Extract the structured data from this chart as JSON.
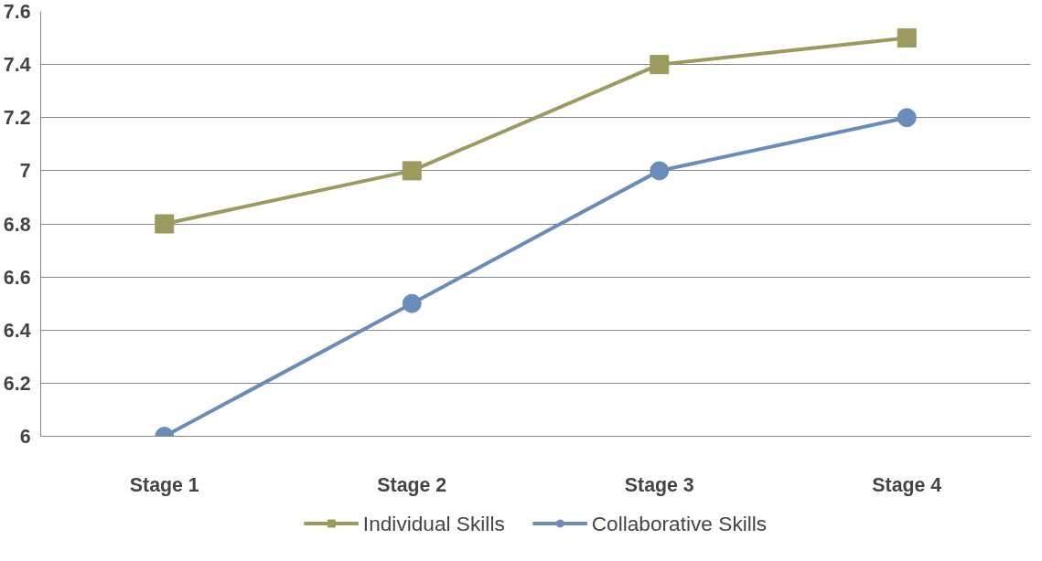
{
  "chart_data": {
    "type": "line",
    "categories": [
      "Stage 1",
      "Stage 2",
      "Stage 3",
      "Stage 4"
    ],
    "series": [
      {
        "name": "Individual Skills",
        "color": "#9b9a5f",
        "marker": "square",
        "values": [
          6.8,
          7.0,
          7.4,
          7.5
        ]
      },
      {
        "name": "Collaborative Skills",
        "color": "#6a8cb9",
        "marker": "circle",
        "values": [
          6.0,
          6.5,
          7.0,
          7.2
        ]
      }
    ],
    "ylim": [
      6,
      7.6
    ],
    "yticks": [
      6,
      6.2,
      6.4,
      6.6,
      6.8,
      7,
      7.2,
      7.4,
      7.6
    ],
    "grid": "y",
    "legend": "bottom",
    "line_style": "solid"
  }
}
